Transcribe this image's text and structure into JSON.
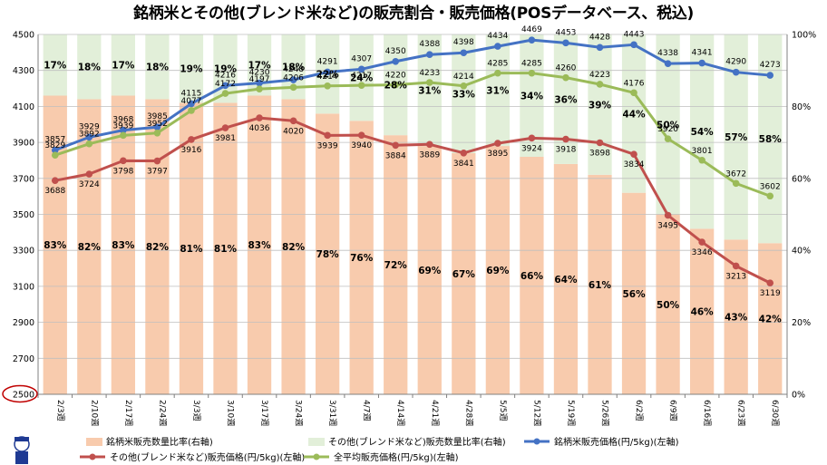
{
  "chart_data": {
    "type": "bar",
    "title": "銘柄米とその他(ブレンド米など)の販売割合・販売価格(POSデータベース、税込)",
    "categories": [
      "2/3週",
      "2/10週",
      "2/17週",
      "2/24週",
      "3/3週",
      "3/10週",
      "3/17週",
      "3/24週",
      "3/31週",
      "4/7週",
      "4/14週",
      "4/21週",
      "4/28週",
      "5/5週",
      "5/12週",
      "5/19週",
      "5/26週",
      "6/2週",
      "6/9週",
      "6/16週",
      "6/23週",
      "6/30週"
    ],
    "left_axis": {
      "ylim": [
        2500,
        4500
      ],
      "ticks": [
        2500,
        2700,
        2900,
        3100,
        3300,
        3500,
        3700,
        3900,
        4100,
        4300,
        4500
      ],
      "highlight": "2500"
    },
    "right_axis": {
      "ylim": [
        0,
        100
      ],
      "ticks": [
        0,
        20,
        40,
        60,
        80,
        100
      ],
      "tick_labels": [
        "0%",
        "20%",
        "40%",
        "60%",
        "80%",
        "100%"
      ]
    },
    "bar_series": [
      {
        "name": "銘柄米販売数量比率(右軸)",
        "color": "#f8cbad",
        "values": [
          83,
          82,
          83,
          82,
          81,
          81,
          83,
          82,
          78,
          76,
          72,
          69,
          67,
          69,
          66,
          64,
          61,
          56,
          50,
          46,
          43,
          42
        ],
        "labels": [
          "83%",
          "82%",
          "83%",
          "82%",
          "81%",
          "81%",
          "83%",
          "82%",
          "78%",
          "76%",
          "72%",
          "69%",
          "67%",
          "69%",
          "66%",
          "64%",
          "61%",
          "56%",
          "50%",
          "46%",
          "43%",
          "42%"
        ]
      },
      {
        "name": "その他(ブレンド米など)販売数量比率(右軸)",
        "color": "#e2efd9",
        "values": [
          17,
          18,
          17,
          18,
          19,
          19,
          17,
          18,
          22,
          24,
          28,
          31,
          33,
          31,
          34,
          36,
          39,
          44,
          50,
          54,
          57,
          58
        ],
        "labels": [
          "17%",
          "18%",
          "17%",
          "18%",
          "19%",
          "19%",
          "17%",
          "18%",
          "22%",
          "24%",
          "28%",
          "31%",
          "33%",
          "31%",
          "34%",
          "36%",
          "39%",
          "44%",
          "50%",
          "54%",
          "57%",
          "58%"
        ]
      }
    ],
    "line_series": [
      {
        "name": "銘柄米販売価格(円/5kg)(左軸)",
        "color": "#4472c4",
        "values": [
          3857,
          3929,
          3968,
          3985,
          4115,
          4216,
          4230,
          4248,
          4291,
          4307,
          4350,
          4388,
          4398,
          4434,
          4469,
          4453,
          4428,
          4443,
          4338,
          4341,
          4290,
          4273
        ]
      },
      {
        "name": "その他(ブレンド米など)販売価格(円/5kg)(左軸)",
        "color": "#c0504d",
        "values": [
          3688,
          3724,
          3798,
          3797,
          3916,
          3981,
          4036,
          4020,
          3939,
          3940,
          3884,
          3889,
          3841,
          3895,
          3924,
          3918,
          3898,
          3834,
          3495,
          3346,
          3213,
          3119
        ]
      },
      {
        "name": "全平均販売価格(円/5kg)(左軸)",
        "color": "#9bbb59",
        "values": [
          3829,
          3892,
          3939,
          3952,
          4077,
          4172,
          4197,
          4206,
          4214,
          4217,
          4220,
          4233,
          4214,
          4285,
          4285,
          4260,
          4223,
          4176,
          3920,
          3801,
          3672,
          3602
        ]
      }
    ],
    "legend_placement": "bottom"
  }
}
